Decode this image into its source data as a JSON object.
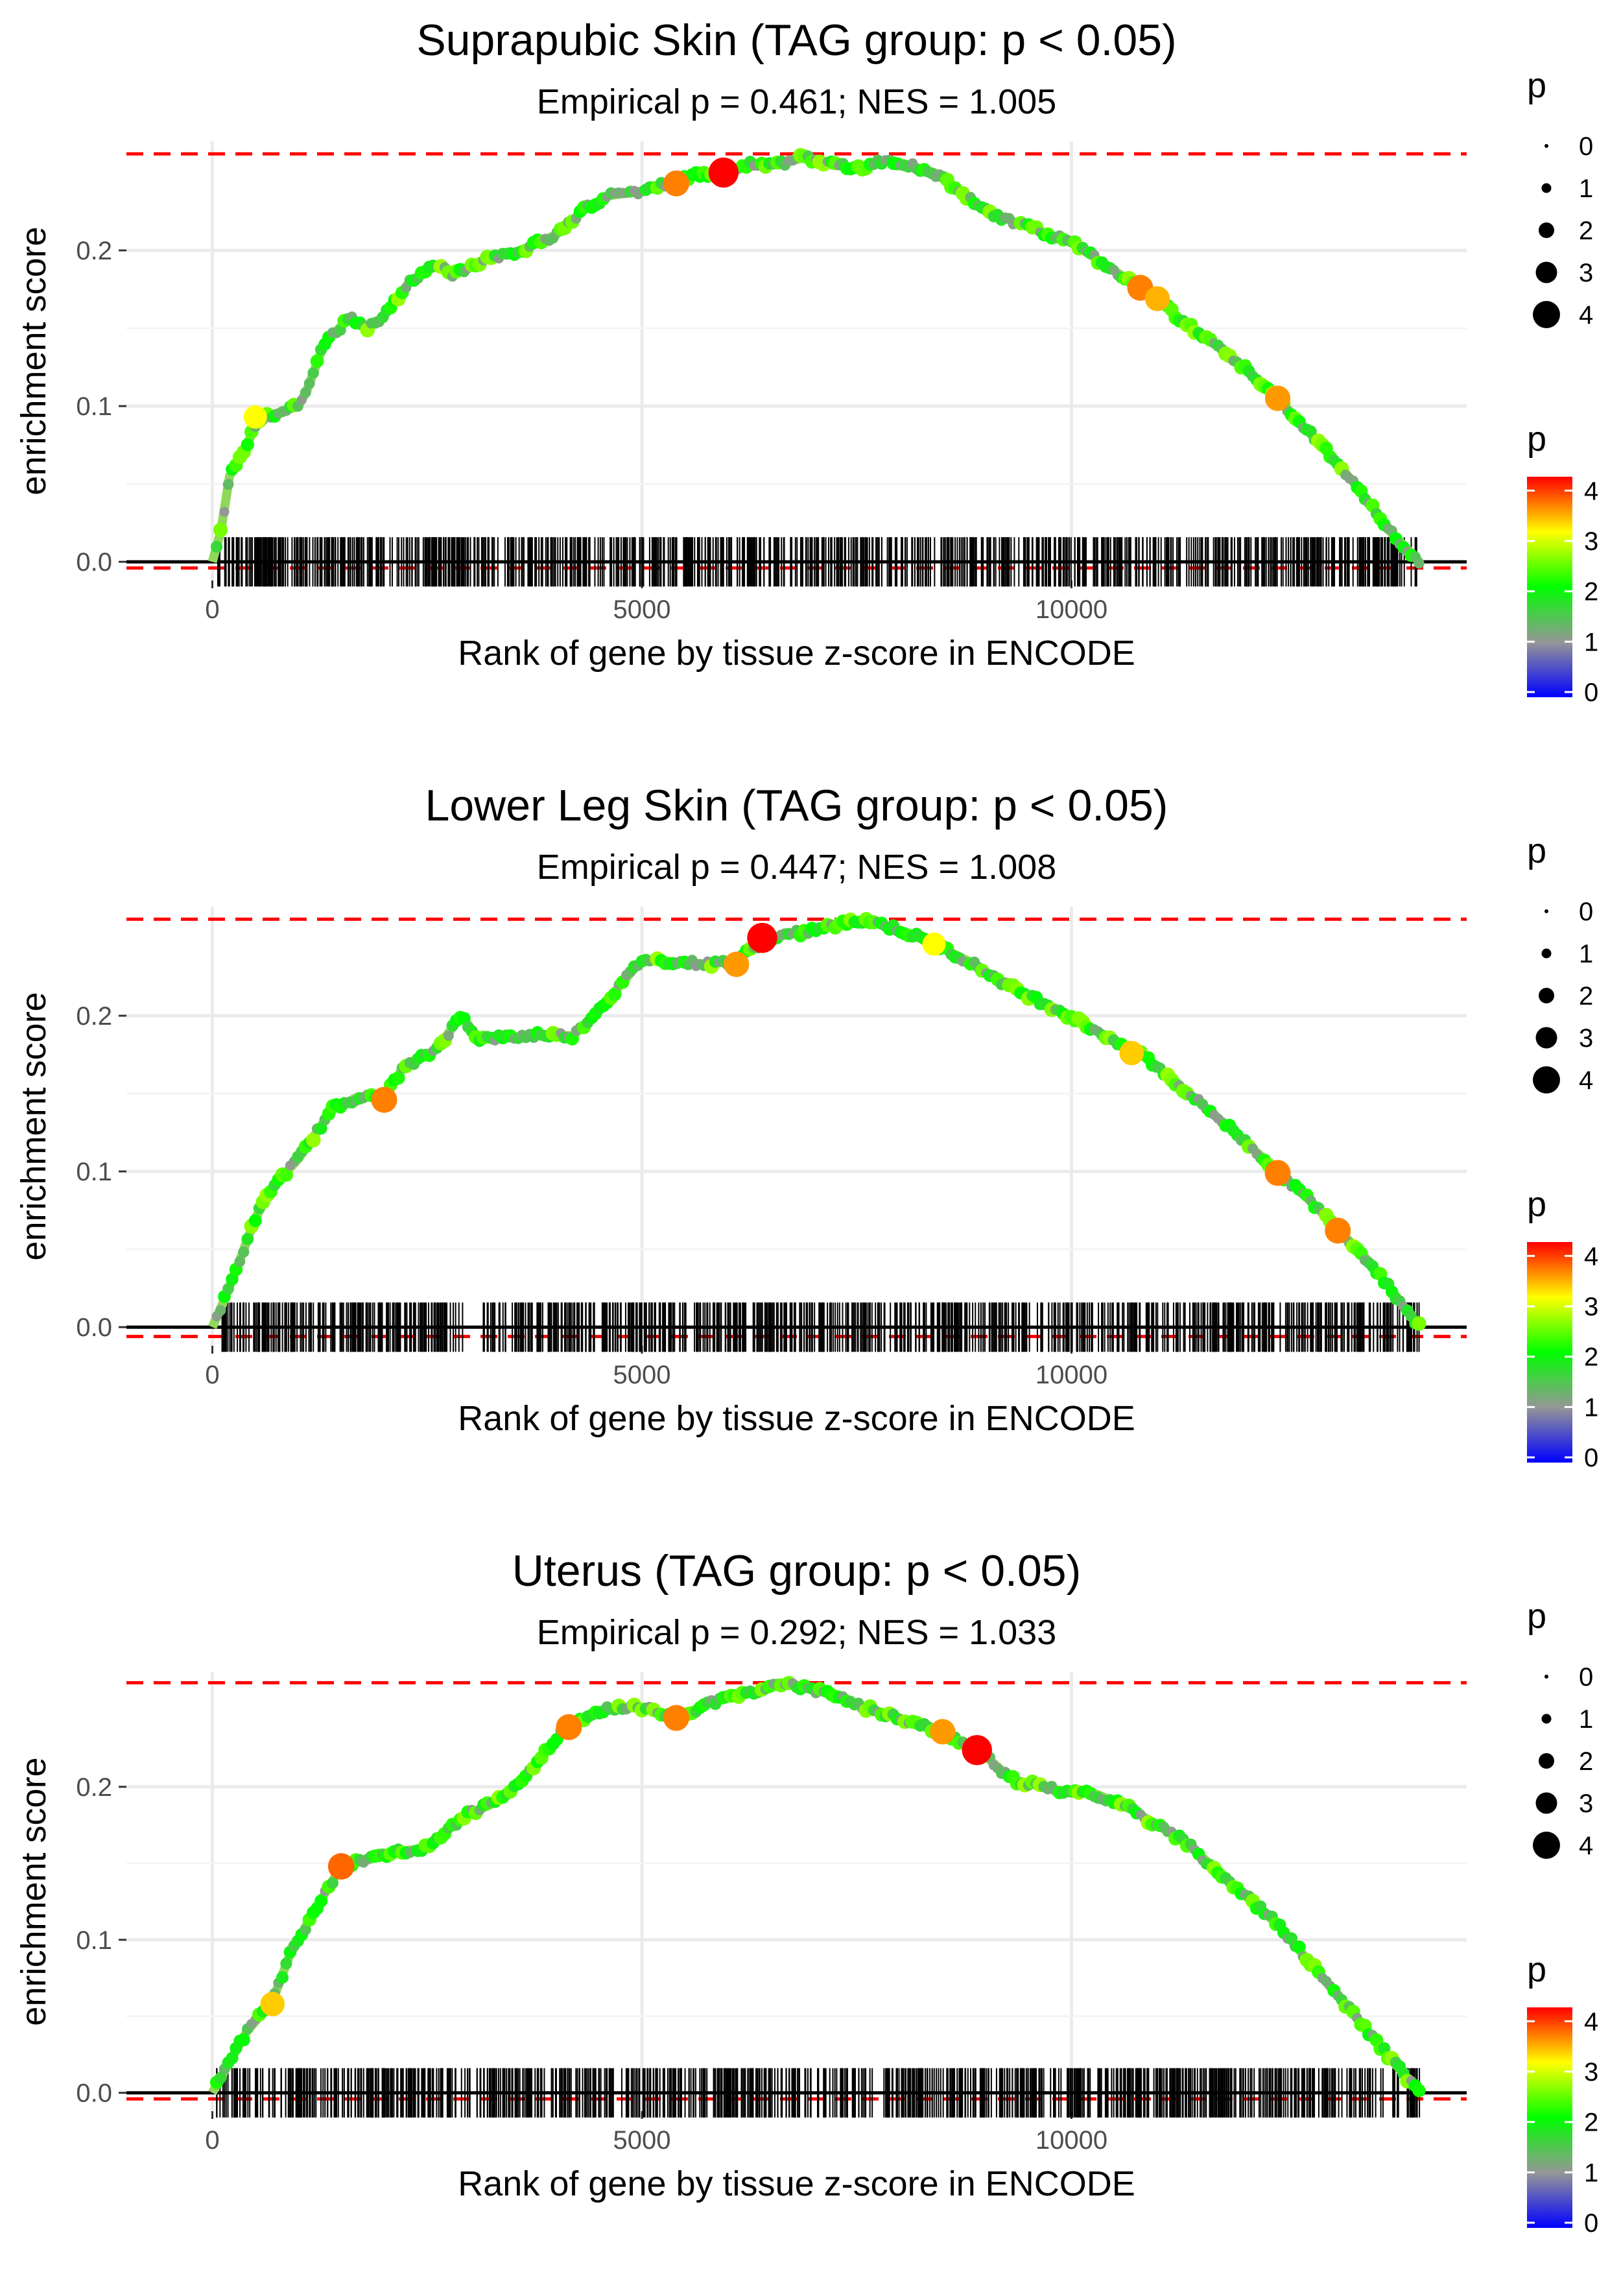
{
  "chart_data": [
    {
      "type": "line",
      "title": "Suprapubic Skin (TAG group: p < 0.05)",
      "subtitle": "Empirical p = 0.461; NES = 1.005",
      "xlabel": "Rank of gene by tissue z-score in ENCODE",
      "ylabel": "enrichment score",
      "xlim": [
        -1000,
        14600
      ],
      "ylim": [
        -0.012,
        0.27
      ],
      "xticks": [
        0,
        5000,
        10000
      ],
      "xtick_labels": [
        "0",
        "5000",
        "10000"
      ],
      "yticks": [
        0.0,
        0.1,
        0.2
      ],
      "ytick_labels": [
        "0.0",
        "0.1",
        "0.2"
      ],
      "hlines": {
        "max": 0.262,
        "min": -0.004
      },
      "gene_range": [
        50,
        14050
      ],
      "n_hits": 900,
      "gaps": [],
      "curve": [
        [
          0,
          0
        ],
        [
          100,
          0.02
        ],
        [
          200,
          0.055
        ],
        [
          400,
          0.075
        ],
        [
          550,
          0.093
        ],
        [
          800,
          0.096
        ],
        [
          1000,
          0.1
        ],
        [
          1100,
          0.11
        ],
        [
          1300,
          0.14
        ],
        [
          1600,
          0.157
        ],
        [
          1800,
          0.15
        ],
        [
          2000,
          0.158
        ],
        [
          2300,
          0.18
        ],
        [
          2600,
          0.19
        ],
        [
          2800,
          0.185
        ],
        [
          3200,
          0.195
        ],
        [
          3600,
          0.2
        ],
        [
          4000,
          0.21
        ],
        [
          4300,
          0.225
        ],
        [
          4600,
          0.235
        ],
        [
          5000,
          0.238
        ],
        [
          5500,
          0.247
        ],
        [
          5900,
          0.25
        ],
        [
          6300,
          0.256
        ],
        [
          6600,
          0.255
        ],
        [
          6900,
          0.26
        ],
        [
          7200,
          0.255
        ],
        [
          7500,
          0.253
        ],
        [
          7900,
          0.258
        ],
        [
          8400,
          0.25
        ],
        [
          8700,
          0.238
        ],
        [
          9000,
          0.225
        ],
        [
          9500,
          0.215
        ],
        [
          10000,
          0.205
        ],
        [
          10800,
          0.176
        ],
        [
          11000,
          0.17
        ],
        [
          11200,
          0.158
        ],
        [
          11800,
          0.135
        ],
        [
          12400,
          0.105
        ],
        [
          12900,
          0.075
        ],
        [
          13300,
          0.05
        ],
        [
          13700,
          0.02
        ],
        [
          14050,
          0.0
        ]
      ],
      "highlights": [
        [
          5400,
          0.243,
          3.5
        ],
        [
          5950,
          0.25,
          4.3
        ],
        [
          10800,
          0.176,
          3.5
        ],
        [
          11000,
          0.169,
          3.3
        ],
        [
          12400,
          0.105,
          3.4
        ],
        [
          500,
          0.093,
          3.0
        ]
      ],
      "legend_size": {
        "title": "p",
        "labels": [
          "0",
          "1",
          "2",
          "3",
          "4"
        ]
      },
      "legend_color": {
        "title": "p",
        "labels": [
          "4",
          "3",
          "2",
          "1",
          "0"
        ]
      }
    },
    {
      "type": "line",
      "title": "Lower Leg Skin (TAG group: p < 0.05)",
      "subtitle": "Empirical p = 0.447; NES = 1.008",
      "xlabel": "Rank of gene by tissue z-score in ENCODE",
      "ylabel": "enrichment score",
      "xlim": [
        -1000,
        14600
      ],
      "ylim": [
        -0.012,
        0.27
      ],
      "xticks": [
        0,
        5000,
        10000
      ],
      "xtick_labels": [
        "0",
        "5000",
        "10000"
      ],
      "yticks": [
        0.0,
        0.1,
        0.2
      ],
      "ytick_labels": [
        "0.0",
        "0.1",
        "0.2"
      ],
      "hlines": {
        "max": 0.262,
        "min": -0.006
      },
      "gene_range": [
        50,
        14050
      ],
      "n_hits": 900,
      "gaps": [
        [
          2930,
          3130
        ]
      ],
      "curve": [
        [
          0,
          0
        ],
        [
          120,
          0.015
        ],
        [
          300,
          0.04
        ],
        [
          500,
          0.07
        ],
        [
          700,
          0.09
        ],
        [
          1000,
          0.108
        ],
        [
          1400,
          0.14
        ],
        [
          1700,
          0.148
        ],
        [
          2000,
          0.147
        ],
        [
          2200,
          0.165
        ],
        [
          2600,
          0.178
        ],
        [
          2900,
          0.2
        ],
        [
          3100,
          0.185
        ],
        [
          3500,
          0.186
        ],
        [
          3800,
          0.188
        ],
        [
          4200,
          0.187
        ],
        [
          4600,
          0.21
        ],
        [
          5000,
          0.236
        ],
        [
          5300,
          0.235
        ],
        [
          5800,
          0.233
        ],
        [
          6100,
          0.236
        ],
        [
          6500,
          0.25
        ],
        [
          7000,
          0.255
        ],
        [
          7600,
          0.262
        ],
        [
          8000,
          0.255
        ],
        [
          8400,
          0.246
        ],
        [
          8800,
          0.235
        ],
        [
          9300,
          0.218
        ],
        [
          9800,
          0.205
        ],
        [
          10300,
          0.19
        ],
        [
          10800,
          0.176
        ],
        [
          11300,
          0.153
        ],
        [
          11800,
          0.13
        ],
        [
          12400,
          0.1
        ],
        [
          12800,
          0.08
        ],
        [
          13100,
          0.063
        ],
        [
          13500,
          0.04
        ],
        [
          14050,
          0.0
        ]
      ],
      "highlights": [
        [
          2000,
          0.146,
          3.5
        ],
        [
          6100,
          0.233,
          3.4
        ],
        [
          6400,
          0.25,
          4.3
        ],
        [
          8400,
          0.246,
          3.0
        ],
        [
          10700,
          0.176,
          3.2
        ],
        [
          12400,
          0.099,
          3.5
        ],
        [
          13100,
          0.062,
          3.5
        ]
      ],
      "legend_size": {
        "title": "p",
        "labels": [
          "0",
          "1",
          "2",
          "3",
          "4"
        ]
      },
      "legend_color": {
        "title": "p",
        "labels": [
          "4",
          "3",
          "2",
          "1",
          "0"
        ]
      }
    },
    {
      "type": "line",
      "title": "Uterus (TAG group: p < 0.05)",
      "subtitle": "Empirical p = 0.292; NES = 1.033",
      "xlabel": "Rank of gene by tissue z-score in ENCODE",
      "ylabel": "enrichment score",
      "xlim": [
        -1000,
        14600
      ],
      "ylim": [
        -0.012,
        0.275
      ],
      "xticks": [
        0,
        5000,
        10000
      ],
      "xtick_labels": [
        "0",
        "5000",
        "10000"
      ],
      "yticks": [
        0.0,
        0.1,
        0.2
      ],
      "ytick_labels": [
        "0.0",
        "0.1",
        "0.2"
      ],
      "hlines": {
        "max": 0.268,
        "min": -0.004
      },
      "gene_range": [
        50,
        14050
      ],
      "n_hits": 900,
      "gaps": [],
      "curve": [
        [
          0,
          0
        ],
        [
          150,
          0.015
        ],
        [
          400,
          0.04
        ],
        [
          700,
          0.06
        ],
        [
          900,
          0.09
        ],
        [
          1200,
          0.12
        ],
        [
          1500,
          0.148
        ],
        [
          1800,
          0.152
        ],
        [
          2200,
          0.158
        ],
        [
          2500,
          0.16
        ],
        [
          2900,
          0.18
        ],
        [
          3300,
          0.19
        ],
        [
          3700,
          0.21
        ],
        [
          4100,
          0.238
        ],
        [
          4500,
          0.25
        ],
        [
          5000,
          0.252
        ],
        [
          5400,
          0.245
        ],
        [
          5800,
          0.255
        ],
        [
          6300,
          0.262
        ],
        [
          6700,
          0.268
        ],
        [
          7100,
          0.262
        ],
        [
          7600,
          0.252
        ],
        [
          8000,
          0.245
        ],
        [
          8500,
          0.235
        ],
        [
          8900,
          0.225
        ],
        [
          9300,
          0.205
        ],
        [
          9800,
          0.198
        ],
        [
          10300,
          0.195
        ],
        [
          10700,
          0.185
        ],
        [
          11300,
          0.165
        ],
        [
          11800,
          0.14
        ],
        [
          12400,
          0.11
        ],
        [
          13000,
          0.07
        ],
        [
          13600,
          0.03
        ],
        [
          14050,
          0.0
        ]
      ],
      "highlights": [
        [
          700,
          0.058,
          3.2
        ],
        [
          1500,
          0.148,
          3.6
        ],
        [
          4150,
          0.239,
          3.5
        ],
        [
          5400,
          0.245,
          3.5
        ],
        [
          8500,
          0.236,
          3.4
        ],
        [
          8900,
          0.224,
          4.3
        ]
      ],
      "legend_size": {
        "title": "p",
        "labels": [
          "0",
          "1",
          "2",
          "3",
          "4"
        ]
      },
      "legend_color": {
        "title": "p",
        "labels": [
          "4",
          "3",
          "2",
          "1",
          "0"
        ]
      }
    }
  ]
}
